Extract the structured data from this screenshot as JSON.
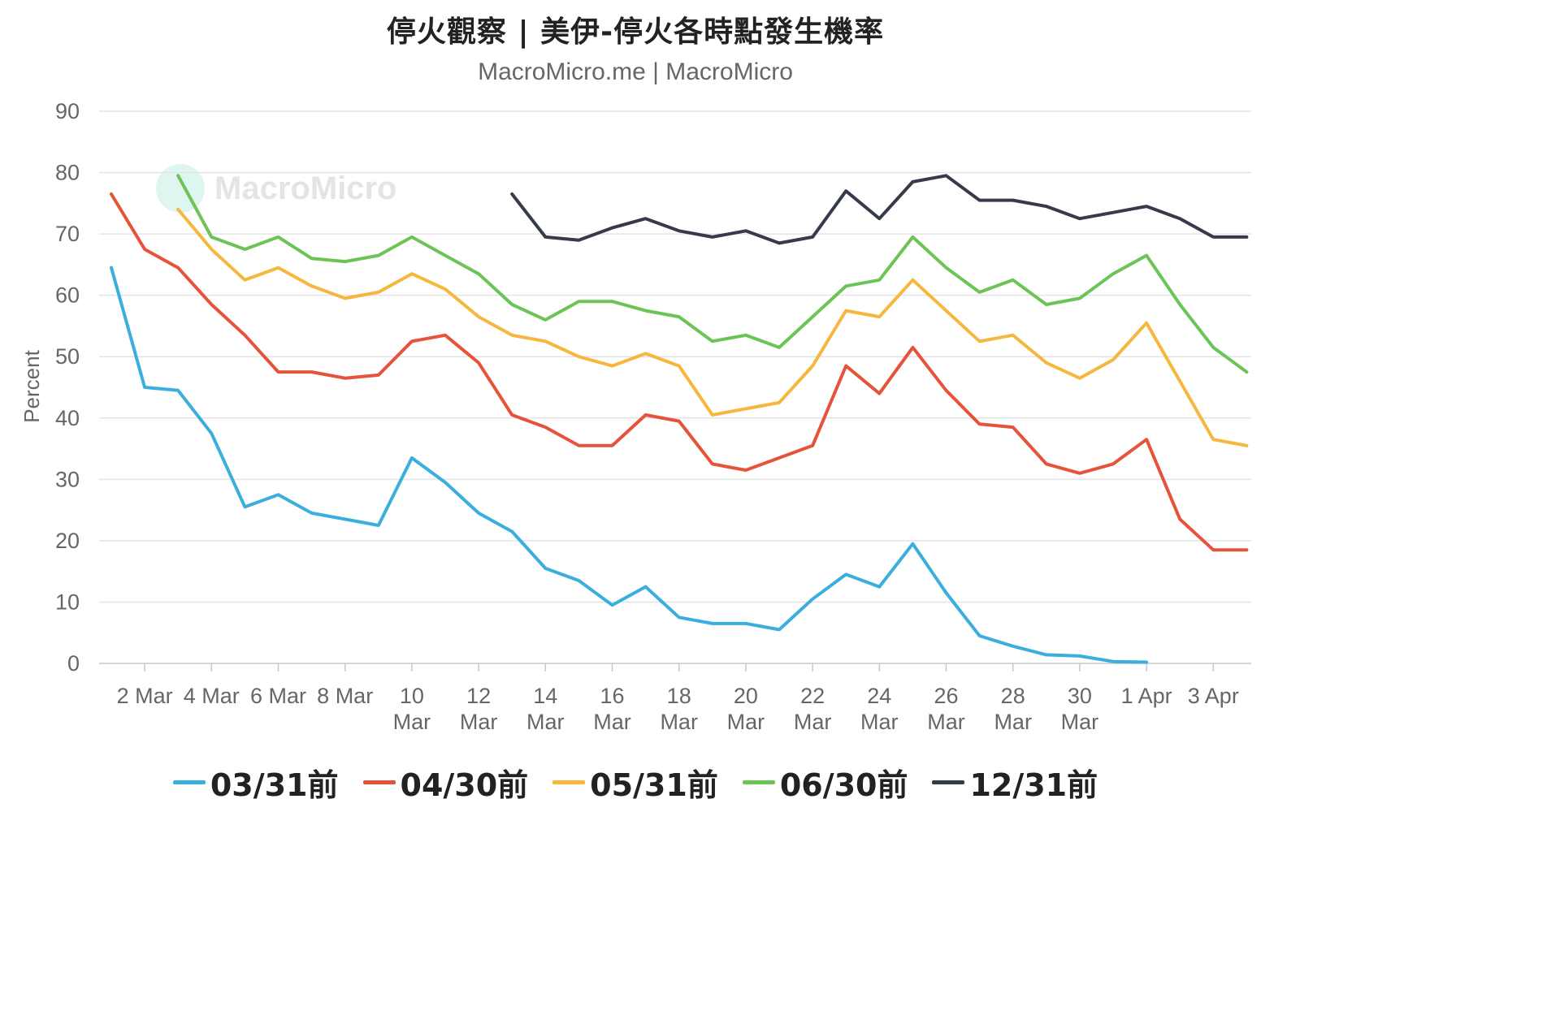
{
  "title": "停火觀察 | 美伊-停火各時點發生機率",
  "subtitle": "MacroMicro.me | MacroMicro",
  "watermark": "MacroMicro",
  "chart_data": {
    "type": "line",
    "title": "停火觀察 | 美伊-停火各時點發生機率",
    "subtitle": "MacroMicro.me | MacroMicro",
    "ylabel": "Percent",
    "xlabel": "",
    "ylim": [
      0,
      90
    ],
    "yticks": [
      0,
      10,
      20,
      30,
      40,
      50,
      60,
      70,
      80,
      90
    ],
    "grid": true,
    "legend_position": "bottom",
    "x": [
      "1 Mar",
      "2 Mar",
      "3 Mar",
      "4 Mar",
      "5 Mar",
      "6 Mar",
      "7 Mar",
      "8 Mar",
      "9 Mar",
      "10 Mar",
      "11 Mar",
      "12 Mar",
      "13 Mar",
      "14 Mar",
      "15 Mar",
      "16 Mar",
      "17 Mar",
      "18 Mar",
      "19 Mar",
      "20 Mar",
      "21 Mar",
      "22 Mar",
      "23 Mar",
      "24 Mar",
      "25 Mar",
      "26 Mar",
      "27 Mar",
      "28 Mar",
      "29 Mar",
      "30 Mar",
      "31 Mar",
      "1 Apr",
      "2 Apr",
      "3 Apr",
      "4 Apr"
    ],
    "x_tick_labels": [
      {
        "index": 1,
        "lines": [
          "2 Mar"
        ]
      },
      {
        "index": 3,
        "lines": [
          "4 Mar"
        ]
      },
      {
        "index": 5,
        "lines": [
          "6 Mar"
        ]
      },
      {
        "index": 7,
        "lines": [
          "8 Mar"
        ]
      },
      {
        "index": 9,
        "lines": [
          "10",
          "Mar"
        ]
      },
      {
        "index": 11,
        "lines": [
          "12",
          "Mar"
        ]
      },
      {
        "index": 13,
        "lines": [
          "14",
          "Mar"
        ]
      },
      {
        "index": 15,
        "lines": [
          "16",
          "Mar"
        ]
      },
      {
        "index": 17,
        "lines": [
          "18",
          "Mar"
        ]
      },
      {
        "index": 19,
        "lines": [
          "20",
          "Mar"
        ]
      },
      {
        "index": 21,
        "lines": [
          "22",
          "Mar"
        ]
      },
      {
        "index": 23,
        "lines": [
          "24",
          "Mar"
        ]
      },
      {
        "index": 25,
        "lines": [
          "26",
          "Mar"
        ]
      },
      {
        "index": 27,
        "lines": [
          "28",
          "Mar"
        ]
      },
      {
        "index": 29,
        "lines": [
          "30",
          "Mar"
        ]
      },
      {
        "index": 31,
        "lines": [
          "1 Apr"
        ]
      },
      {
        "index": 33,
        "lines": [
          "3 Apr"
        ]
      }
    ],
    "series": [
      {
        "name": "03/31前",
        "color": "#3aaedc",
        "values": [
          64.5,
          45,
          44.5,
          37.5,
          25.5,
          27.5,
          24.5,
          23.5,
          22.5,
          33.5,
          29.5,
          24.5,
          21.5,
          15.5,
          13.5,
          9.5,
          12.5,
          7.5,
          6.5,
          6.5,
          5.5,
          10.5,
          14.5,
          12.5,
          19.5,
          11.5,
          4.5,
          2.8,
          1.4,
          1.2,
          0.3,
          0.2,
          null,
          null,
          null
        ]
      },
      {
        "name": "04/30前",
        "color": "#e5533b",
        "values": [
          76.5,
          67.5,
          64.5,
          58.5,
          53.5,
          47.5,
          47.5,
          46.5,
          47,
          52.5,
          53.5,
          49,
          40.5,
          38.5,
          35.5,
          35.5,
          40.5,
          39.5,
          32.5,
          31.5,
          33.5,
          35.5,
          48.5,
          44,
          51.5,
          44.5,
          39,
          38.5,
          32.5,
          31,
          32.5,
          36.5,
          23.5,
          18.5,
          18.5
        ]
      },
      {
        "name": "05/31前",
        "color": "#f5b73d",
        "values": [
          null,
          null,
          74,
          67.5,
          62.5,
          64.5,
          61.5,
          59.5,
          60.5,
          63.5,
          61,
          56.5,
          53.5,
          52.5,
          50,
          48.5,
          50.5,
          48.5,
          40.5,
          41.5,
          42.5,
          48.5,
          57.5,
          56.5,
          62.5,
          57.5,
          52.5,
          53.5,
          49,
          46.5,
          49.5,
          55.5,
          46,
          36.5,
          35.5
        ]
      },
      {
        "name": "06/30前",
        "color": "#6cc456",
        "values": [
          null,
          null,
          79.5,
          69.5,
          67.5,
          69.5,
          66,
          65.5,
          66.5,
          69.5,
          66.5,
          63.5,
          58.5,
          56,
          59,
          59,
          57.5,
          56.5,
          52.5,
          53.5,
          51.5,
          56.5,
          61.5,
          62.5,
          69.5,
          64.5,
          60.5,
          62.5,
          58.5,
          59.5,
          63.5,
          66.5,
          58.5,
          51.5,
          47.5
        ]
      },
      {
        "name": "12/31前",
        "color": "#353b4a",
        "values": [
          null,
          null,
          null,
          null,
          null,
          null,
          null,
          null,
          null,
          null,
          null,
          null,
          76.5,
          69.5,
          69,
          71,
          72.5,
          70.5,
          69.5,
          70.5,
          68.5,
          69.5,
          77,
          72.5,
          78.5,
          79.5,
          75.5,
          75.5,
          74.5,
          72.5,
          73.5,
          74.5,
          72.5,
          69.5,
          69.5
        ]
      }
    ]
  }
}
